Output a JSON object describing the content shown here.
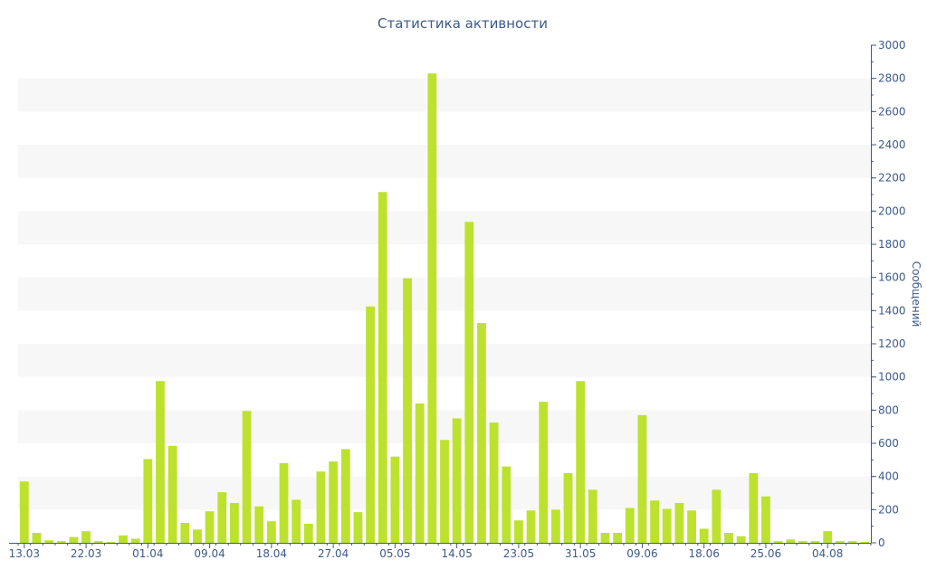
{
  "chart_data": {
    "type": "bar",
    "title": "Статистика активности",
    "ylabel": "Сообщений",
    "xlabel": "",
    "ylim": [
      0,
      3000
    ],
    "y_ticks": [
      0,
      200,
      400,
      600,
      800,
      1000,
      1200,
      1400,
      1600,
      1800,
      2000,
      2200,
      2400,
      2600,
      2800,
      3000
    ],
    "y_axis_position": "right",
    "grid": "alternating horizontal bands",
    "x_ticks": [
      {
        "label": "13.03",
        "index": 0
      },
      {
        "label": "22.03",
        "index": 5
      },
      {
        "label": "01.04",
        "index": 10
      },
      {
        "label": "09.04",
        "index": 15
      },
      {
        "label": "18.04",
        "index": 20
      },
      {
        "label": "27.04",
        "index": 25
      },
      {
        "label": "05.05",
        "index": 30
      },
      {
        "label": "14.05",
        "index": 35
      },
      {
        "label": "23.05",
        "index": 40
      },
      {
        "label": "31.05",
        "index": 45
      },
      {
        "label": "09.06",
        "index": 50
      },
      {
        "label": "18.06",
        "index": 55
      },
      {
        "label": "25.06",
        "index": 60
      },
      {
        "label": "04.08",
        "index": 65
      }
    ],
    "values": [
      370,
      60,
      15,
      10,
      35,
      70,
      10,
      5,
      45,
      25,
      505,
      975,
      585,
      120,
      80,
      190,
      305,
      240,
      795,
      220,
      130,
      480,
      260,
      115,
      430,
      490,
      565,
      185,
      1425,
      2115,
      520,
      1595,
      840,
      2830,
      620,
      750,
      1935,
      1325,
      725,
      460,
      135,
      195,
      850,
      200,
      420,
      975,
      320,
      60,
      60,
      210,
      770,
      255,
      205,
      240,
      195,
      85,
      320,
      60,
      40,
      420,
      280,
      10,
      20,
      10,
      10,
      70,
      10,
      10,
      5
    ],
    "bar_color": "#bce22f",
    "band_color": "#f7f7f7",
    "axis_color": "#3d5a8c"
  }
}
